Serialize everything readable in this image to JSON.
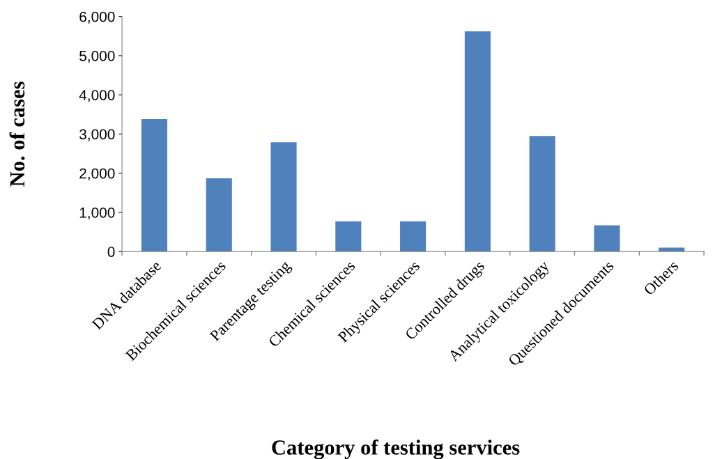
{
  "chart_data": {
    "type": "bar",
    "xlabel": "Category of testing services",
    "ylabel": "No. of cases",
    "categories": [
      "DNA database",
      "Biochemical sciences",
      "Parentage testing",
      "Chemical sciences",
      "Physical sciences",
      "Controlled drugs",
      "Analytical toxicology",
      "Questioned documents",
      "Others"
    ],
    "values": [
      3380,
      1870,
      2790,
      770,
      770,
      5620,
      2950,
      670,
      100
    ],
    "color": "#4f81bd",
    "ylim": [
      0,
      6000
    ],
    "yticks": [
      {
        "value": 0,
        "label": "0"
      },
      {
        "value": 1000,
        "label": "1,000"
      },
      {
        "value": 2000,
        "label": "2,000"
      },
      {
        "value": 3000,
        "label": "3,000"
      },
      {
        "value": 4000,
        "label": "4,000"
      },
      {
        "value": 5000,
        "label": "5,000"
      },
      {
        "value": 6000,
        "label": "6,000"
      }
    ],
    "grid": false,
    "legend": false
  }
}
